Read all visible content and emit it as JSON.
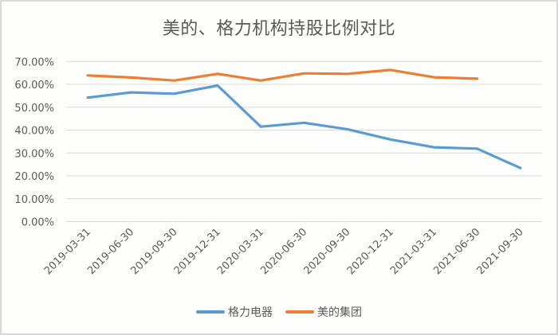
{
  "chart_data": {
    "type": "line",
    "title": "美的、格力机构持股比例对比",
    "xlabel": "",
    "ylabel": "",
    "ylim": [
      0,
      0.7
    ],
    "yticks": [
      "0.00%",
      "10.00%",
      "20.00%",
      "30.00%",
      "40.00%",
      "50.00%",
      "60.00%",
      "70.00%"
    ],
    "grid": true,
    "legend_position": "bottom",
    "categories": [
      "2019-03-31",
      "2019-06-30",
      "2019-09-30",
      "2019-12-31",
      "2020-03-31",
      "2020-06-30",
      "2020-09-30",
      "2020-12-31",
      "2021-03-31",
      "2021-06-30",
      "2021-09-30"
    ],
    "series": [
      {
        "name": "格力电器",
        "color": "#5b9bd5",
        "values": [
          0.542,
          0.565,
          0.559,
          0.595,
          0.415,
          0.432,
          0.404,
          0.359,
          0.325,
          0.319,
          0.234
        ]
      },
      {
        "name": "美的集团",
        "color": "#ed7d31",
        "values": [
          0.639,
          0.63,
          0.617,
          0.646,
          0.617,
          0.648,
          0.646,
          0.663,
          0.631,
          0.625,
          null
        ]
      }
    ]
  },
  "legend": {
    "items": [
      {
        "label": "格力电器",
        "color": "#5b9bd5"
      },
      {
        "label": "美的集团",
        "color": "#ed7d31"
      }
    ]
  }
}
